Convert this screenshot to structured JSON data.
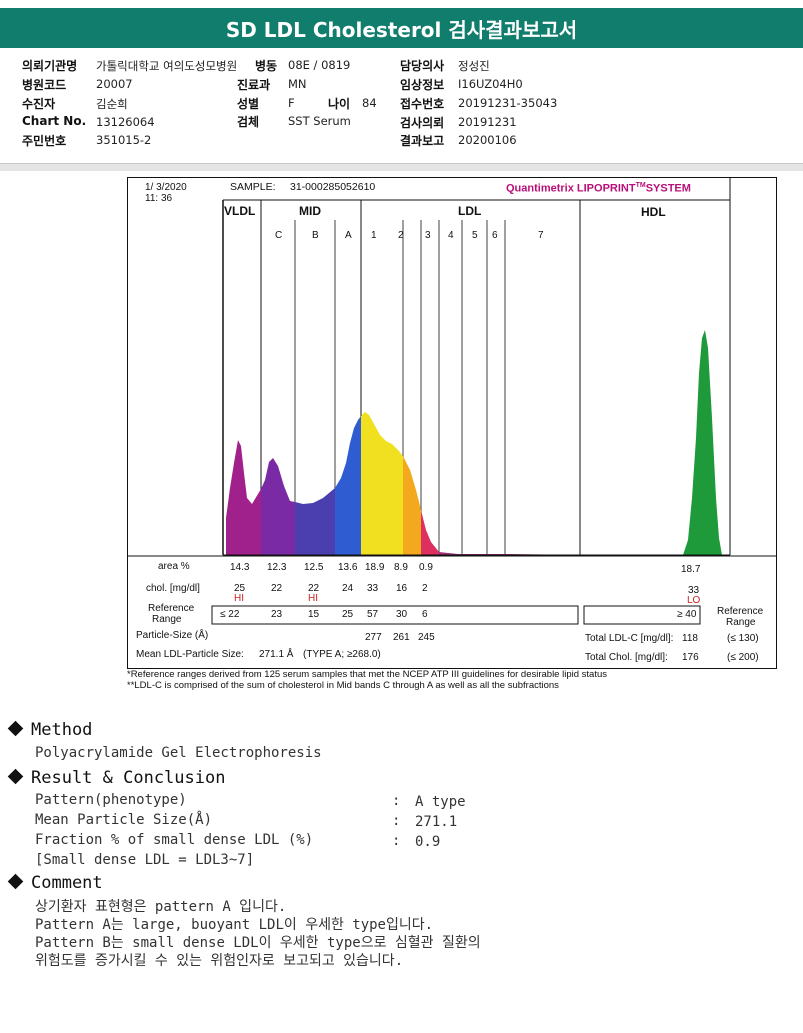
{
  "banner": {
    "title": "SD LDL Cholesterol 검사결과보고서"
  },
  "header": {
    "row1": {
      "l1": "의뢰기관명",
      "v1": "가톨릭대학교 여의도성모병원",
      "l2": "병동",
      "v2": "08E / 0819",
      "l3": "담당의사",
      "v3": "정성진"
    },
    "row2": {
      "l1": "병원코드",
      "v1": "20007",
      "l2": "진료과",
      "v2": "MN",
      "l3": "임상정보",
      "v3": "I16UZ04H0"
    },
    "row3": {
      "l1": "수진자",
      "v1": "김순희",
      "l2": "성별",
      "v2": "F",
      "l2b": "나이",
      "v2b": "84",
      "l3": "접수번호",
      "v3": "20191231-35043"
    },
    "row4": {
      "l1": "Chart No.",
      "v1": "13126064",
      "l2": "검체",
      "v2": "SST Serum",
      "l3": "검사의뢰",
      "v3": "20191231"
    },
    "row5": {
      "l1": "주민번호",
      "v1": "351015-2",
      "l3": "결과보고",
      "v3": "20200106"
    }
  },
  "report": {
    "date": "1/  3/2020",
    "time": "11: 36",
    "sample_label": "SAMPLE:",
    "sample_id": "31-000285052610",
    "brand": "Quantimetrix LIPOPRINT",
    "brand_tm": "TM",
    "brand_suffix": "SYSTEM",
    "band_groups": [
      "VLDL",
      "MID",
      "LDL",
      "HDL"
    ],
    "band_labels": [
      "C",
      "B",
      "A",
      "1",
      "2",
      "3",
      "4",
      "5",
      "6",
      "7"
    ],
    "hdl_peak_label": "18.7",
    "area_label": "area %",
    "area_values": [
      "14.3",
      "12.3",
      "12.5",
      "13.6",
      "18.9",
      "8.9",
      "0.9"
    ],
    "chol_label": "chol. [mg/dl]",
    "chol_values": [
      "25",
      "22",
      "22",
      "24",
      "33",
      "16",
      "2"
    ],
    "chol_flags": [
      "HI",
      "",
      "HI",
      "",
      "",
      "",
      ""
    ],
    "hdl_chol": "33",
    "hdl_flag": "LO",
    "ref_label_1": "Reference",
    "ref_label_2": "Range",
    "ref_values": [
      "≤ 22",
      "23",
      "15",
      "25",
      "57",
      "30",
      "6"
    ],
    "hdl_ref": "≥ 40",
    "ref_right_1": "Reference",
    "ref_right_2": "Range",
    "particle_label": "Particle-Size (Å)",
    "particle_values": [
      "277",
      "261",
      "245"
    ],
    "mean_label": "Mean LDL-Particle Size:",
    "mean_value": "271.1 Å",
    "mean_type": "(TYPE A; ≥268.0)",
    "total_ldl_label": "Total LDL-C [mg/dl]:",
    "total_ldl_value": "118",
    "total_ldl_ref": "(≤ 130)",
    "total_chol_label": "Total Chol. [mg/dl]:",
    "total_chol_value": "176",
    "total_chol_ref": "(≤ 200)",
    "footnote1": "*Reference ranges derived from 125 serum samples that met the NCEP ATP III guidelines for desirable lipid status",
    "footnote2": "**LDL-C is comprised of the sum of cholesterol in Mid bands C through A as well as all the subfractions"
  },
  "chart_data": {
    "type": "area",
    "title": "",
    "bands": [
      "VLDL",
      "MID C",
      "MID B",
      "MID A",
      "LDL 1",
      "LDL 2",
      "LDL 3-7",
      "HDL"
    ],
    "area_percent": [
      14.3,
      12.3,
      12.5,
      13.6,
      18.9,
      8.9,
      0.9,
      18.7
    ],
    "colors": {
      "vldl": "#a0208c",
      "mid_c": "#7b2aa6",
      "mid_b": "#4b3fb0",
      "mid_a": "#2f5cd0",
      "ldl1": "#f0e020",
      "ldl2": "#f3a81e",
      "ldl3": "#dd3060",
      "hdl": "#1f9a3a"
    }
  },
  "method": {
    "title": "Method",
    "text": "Polyacrylamide Gel Electrophoresis"
  },
  "result": {
    "title": "Result & Conclusion",
    "rows": [
      {
        "label": "Pattern(phenotype)",
        "value": "A type"
      },
      {
        "label": "Mean Particle Size(Å)",
        "value": "271.1"
      },
      {
        "label": "Fraction % of small dense LDL (%)",
        "value": "0.9"
      }
    ],
    "note": "[Small dense LDL = LDL3~7]"
  },
  "comment": {
    "title": "Comment",
    "lines": [
      "상기환자 표현형은 pattern A 입니다.",
      "Pattern A는 large, buoyant LDL이 우세한 type입니다.",
      "Pattern B는 small dense LDL이 우세한 type으로 심혈관 질환의",
      "위험도를 증가시킬 수 있는 위험인자로 보고되고 있습니다."
    ]
  }
}
